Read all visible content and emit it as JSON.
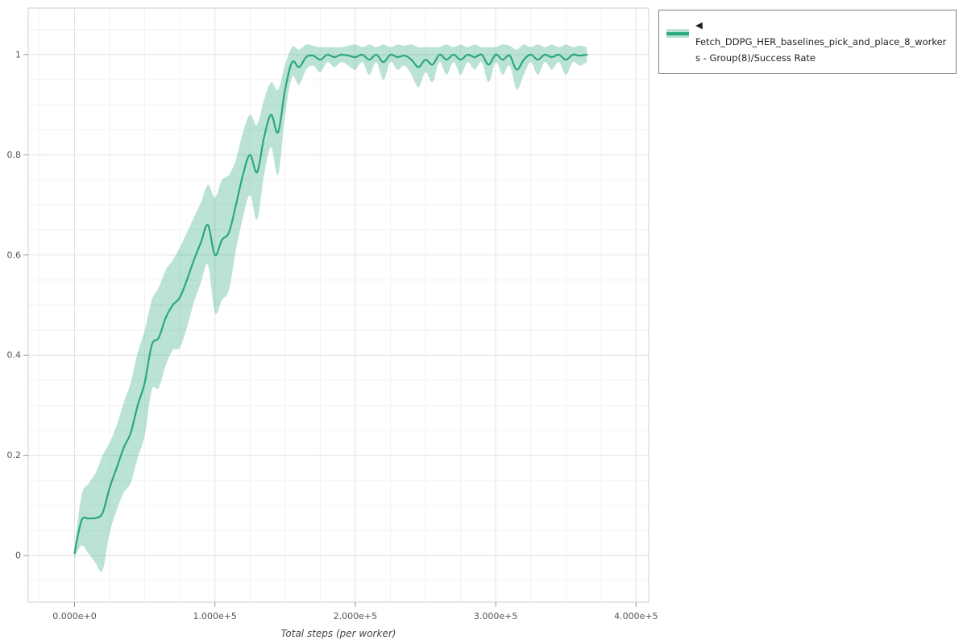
{
  "figure": {
    "background": "#ffffff"
  },
  "axes": {
    "x_label": "Total steps (per worker)",
    "x_tick_labels": [
      "0.000e+0",
      "1.000e+5",
      "2.000e+5",
      "3.000e+5",
      "4.000e+5"
    ],
    "x_tick_values": [
      0,
      100000,
      200000,
      300000,
      400000
    ],
    "y_tick_labels": [
      "0",
      "0.2",
      "0.4",
      "0.6",
      "0.8",
      "1"
    ],
    "y_tick_values": [
      0,
      0.2,
      0.4,
      0.6,
      0.8,
      1
    ],
    "grid_major_color": "#e2e2e2",
    "grid_minor_color": "#f2f2f2",
    "border_color": "#cfcfcf",
    "tick_color": "#999999"
  },
  "legend": {
    "line1": "◀ Fetch_DDPG_HER_baselines_pick_and_place_8_worker",
    "line2": "s - Group(8)/Success Rate",
    "series_color": "#2aa87b",
    "band_opacity": 0.32
  },
  "chart_data": {
    "type": "line",
    "title": "",
    "xlabel": "Total steps (per worker)",
    "ylabel": "",
    "xlim": [
      -33000,
      409000
    ],
    "ylim": [
      -0.093,
      1.093
    ],
    "grid": true,
    "legend_position": "top-right",
    "series": [
      {
        "name": "Fetch_DDPG_HER_baselines_pick_and_place_8_workers - Group(8)/Success Rate",
        "color": "#2aa87b",
        "band_opacity": 0.32,
        "x": [
          0,
          5000,
          10000,
          15000,
          20000,
          25000,
          30000,
          35000,
          40000,
          45000,
          50000,
          55000,
          60000,
          65000,
          70000,
          75000,
          80000,
          85000,
          90000,
          95000,
          100000,
          105000,
          110000,
          115000,
          120000,
          125000,
          130000,
          135000,
          140000,
          145000,
          150000,
          155000,
          160000,
          165000,
          170000,
          175000,
          180000,
          185000,
          190000,
          195000,
          200000,
          205000,
          210000,
          215000,
          220000,
          225000,
          230000,
          235000,
          240000,
          245000,
          250000,
          255000,
          260000,
          265000,
          270000,
          275000,
          280000,
          285000,
          290000,
          295000,
          300000,
          305000,
          310000,
          315000,
          320000,
          325000,
          330000,
          335000,
          340000,
          345000,
          350000,
          355000,
          360000,
          365000
        ],
        "y": [
          0.005,
          0.07,
          0.074,
          0.075,
          0.085,
          0.135,
          0.175,
          0.215,
          0.245,
          0.3,
          0.345,
          0.42,
          0.435,
          0.475,
          0.5,
          0.515,
          0.55,
          0.59,
          0.625,
          0.66,
          0.6,
          0.63,
          0.645,
          0.7,
          0.76,
          0.8,
          0.765,
          0.835,
          0.88,
          0.845,
          0.93,
          0.985,
          0.975,
          0.995,
          0.998,
          0.99,
          1.0,
          0.995,
          1.0,
          0.998,
          0.995,
          1.0,
          0.99,
          1.0,
          0.985,
          1.0,
          0.995,
          0.998,
          0.99,
          0.975,
          0.99,
          0.98,
          1.0,
          0.99,
          1.0,
          0.99,
          1.0,
          0.995,
          1.0,
          0.98,
          1.0,
          0.99,
          0.998,
          0.97,
          0.99,
          1.0,
          0.99,
          1.0,
          0.995,
          1.0,
          0.99,
          1.0,
          0.998,
          1.0
        ],
        "y_half_width": [
          0.01,
          0.05,
          0.07,
          0.09,
          0.115,
          0.09,
          0.085,
          0.09,
          0.1,
          0.105,
          0.105,
          0.09,
          0.1,
          0.095,
          0.09,
          0.1,
          0.095,
          0.085,
          0.08,
          0.08,
          0.115,
          0.12,
          0.115,
          0.09,
          0.085,
          0.08,
          0.095,
          0.075,
          0.065,
          0.085,
          0.05,
          0.03,
          0.035,
          0.025,
          0.02,
          0.025,
          0.015,
          0.02,
          0.015,
          0.02,
          0.025,
          0.015,
          0.03,
          0.015,
          0.035,
          0.015,
          0.025,
          0.02,
          0.03,
          0.04,
          0.025,
          0.035,
          0.015,
          0.03,
          0.015,
          0.03,
          0.015,
          0.025,
          0.015,
          0.035,
          0.015,
          0.03,
          0.02,
          0.04,
          0.03,
          0.015,
          0.03,
          0.015,
          0.025,
          0.015,
          0.03,
          0.015,
          0.02,
          0.015
        ]
      }
    ]
  }
}
